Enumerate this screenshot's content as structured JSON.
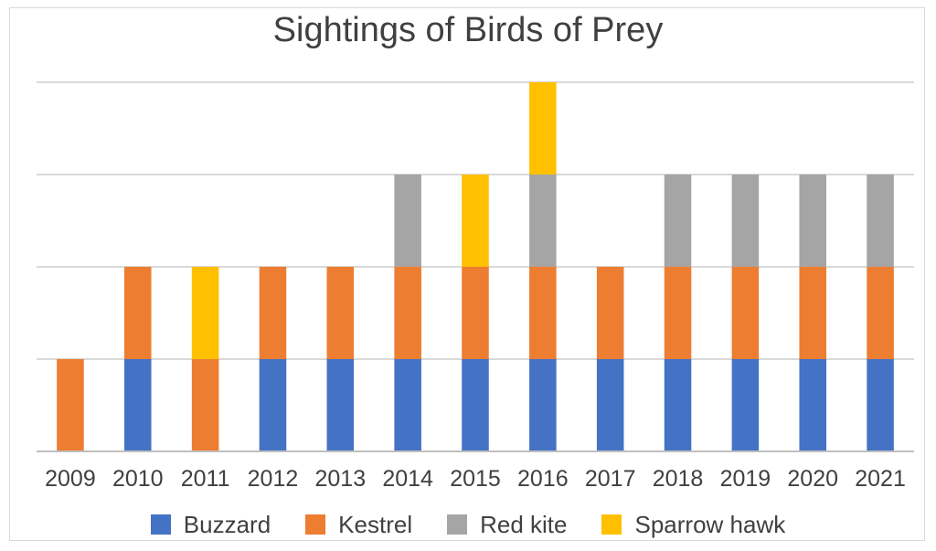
{
  "chart_data": {
    "type": "bar",
    "stacked": true,
    "title": "Sightings of Birds of Prey",
    "xlabel": "",
    "ylabel": "",
    "categories": [
      "2009",
      "2010",
      "2011",
      "2012",
      "2013",
      "2014",
      "2015",
      "2016",
      "2017",
      "2018",
      "2019",
      "2020",
      "2021"
    ],
    "ylim": [
      0,
      4
    ],
    "grid": true,
    "legend_position": "bottom",
    "series": [
      {
        "name": "Buzzard",
        "color": "#4472c4",
        "values": [
          0,
          1,
          0,
          1,
          1,
          1,
          1,
          1,
          1,
          1,
          1,
          1,
          1
        ]
      },
      {
        "name": "Kestrel",
        "color": "#ed7d31",
        "values": [
          1,
          1,
          1,
          1,
          1,
          1,
          1,
          1,
          1,
          1,
          1,
          1,
          1
        ]
      },
      {
        "name": "Red kite",
        "color": "#a5a5a5",
        "values": [
          0,
          0,
          0,
          0,
          0,
          1,
          0,
          1,
          0,
          1,
          1,
          1,
          1
        ]
      },
      {
        "name": "Sparrow hawk",
        "color": "#ffc000",
        "values": [
          0,
          0,
          1,
          0,
          0,
          0,
          1,
          1,
          0,
          0,
          0,
          0,
          0
        ]
      }
    ]
  }
}
